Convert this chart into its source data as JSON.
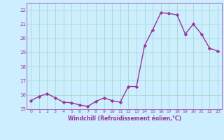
{
  "x": [
    0,
    1,
    2,
    3,
    4,
    5,
    6,
    7,
    8,
    9,
    10,
    11,
    12,
    13,
    14,
    15,
    16,
    17,
    18,
    19,
    20,
    21,
    22,
    23
  ],
  "y": [
    15.6,
    15.9,
    16.1,
    15.8,
    15.5,
    15.45,
    15.3,
    15.2,
    15.55,
    15.8,
    15.6,
    15.5,
    16.6,
    16.6,
    19.5,
    20.6,
    21.8,
    21.75,
    21.65,
    20.3,
    21.0,
    20.3,
    19.3,
    19.1
  ],
  "line_color": "#993399",
  "marker": "D",
  "marker_size": 2.2,
  "line_width": 1.0,
  "bg_color": "#cceeff",
  "grid_color": "#a8d8cc",
  "xlabel": "Windchill (Refroidissement éolien,°C)",
  "xlabel_color": "#993399",
  "tick_color": "#993399",
  "ylim": [
    15,
    22.5
  ],
  "xlim": [
    -0.5,
    23.5
  ],
  "yticks": [
    15,
    16,
    17,
    18,
    19,
    20,
    21,
    22
  ],
  "xticks": [
    0,
    1,
    2,
    3,
    4,
    5,
    6,
    7,
    8,
    9,
    10,
    11,
    12,
    13,
    14,
    15,
    16,
    17,
    18,
    19,
    20,
    21,
    22,
    23
  ]
}
